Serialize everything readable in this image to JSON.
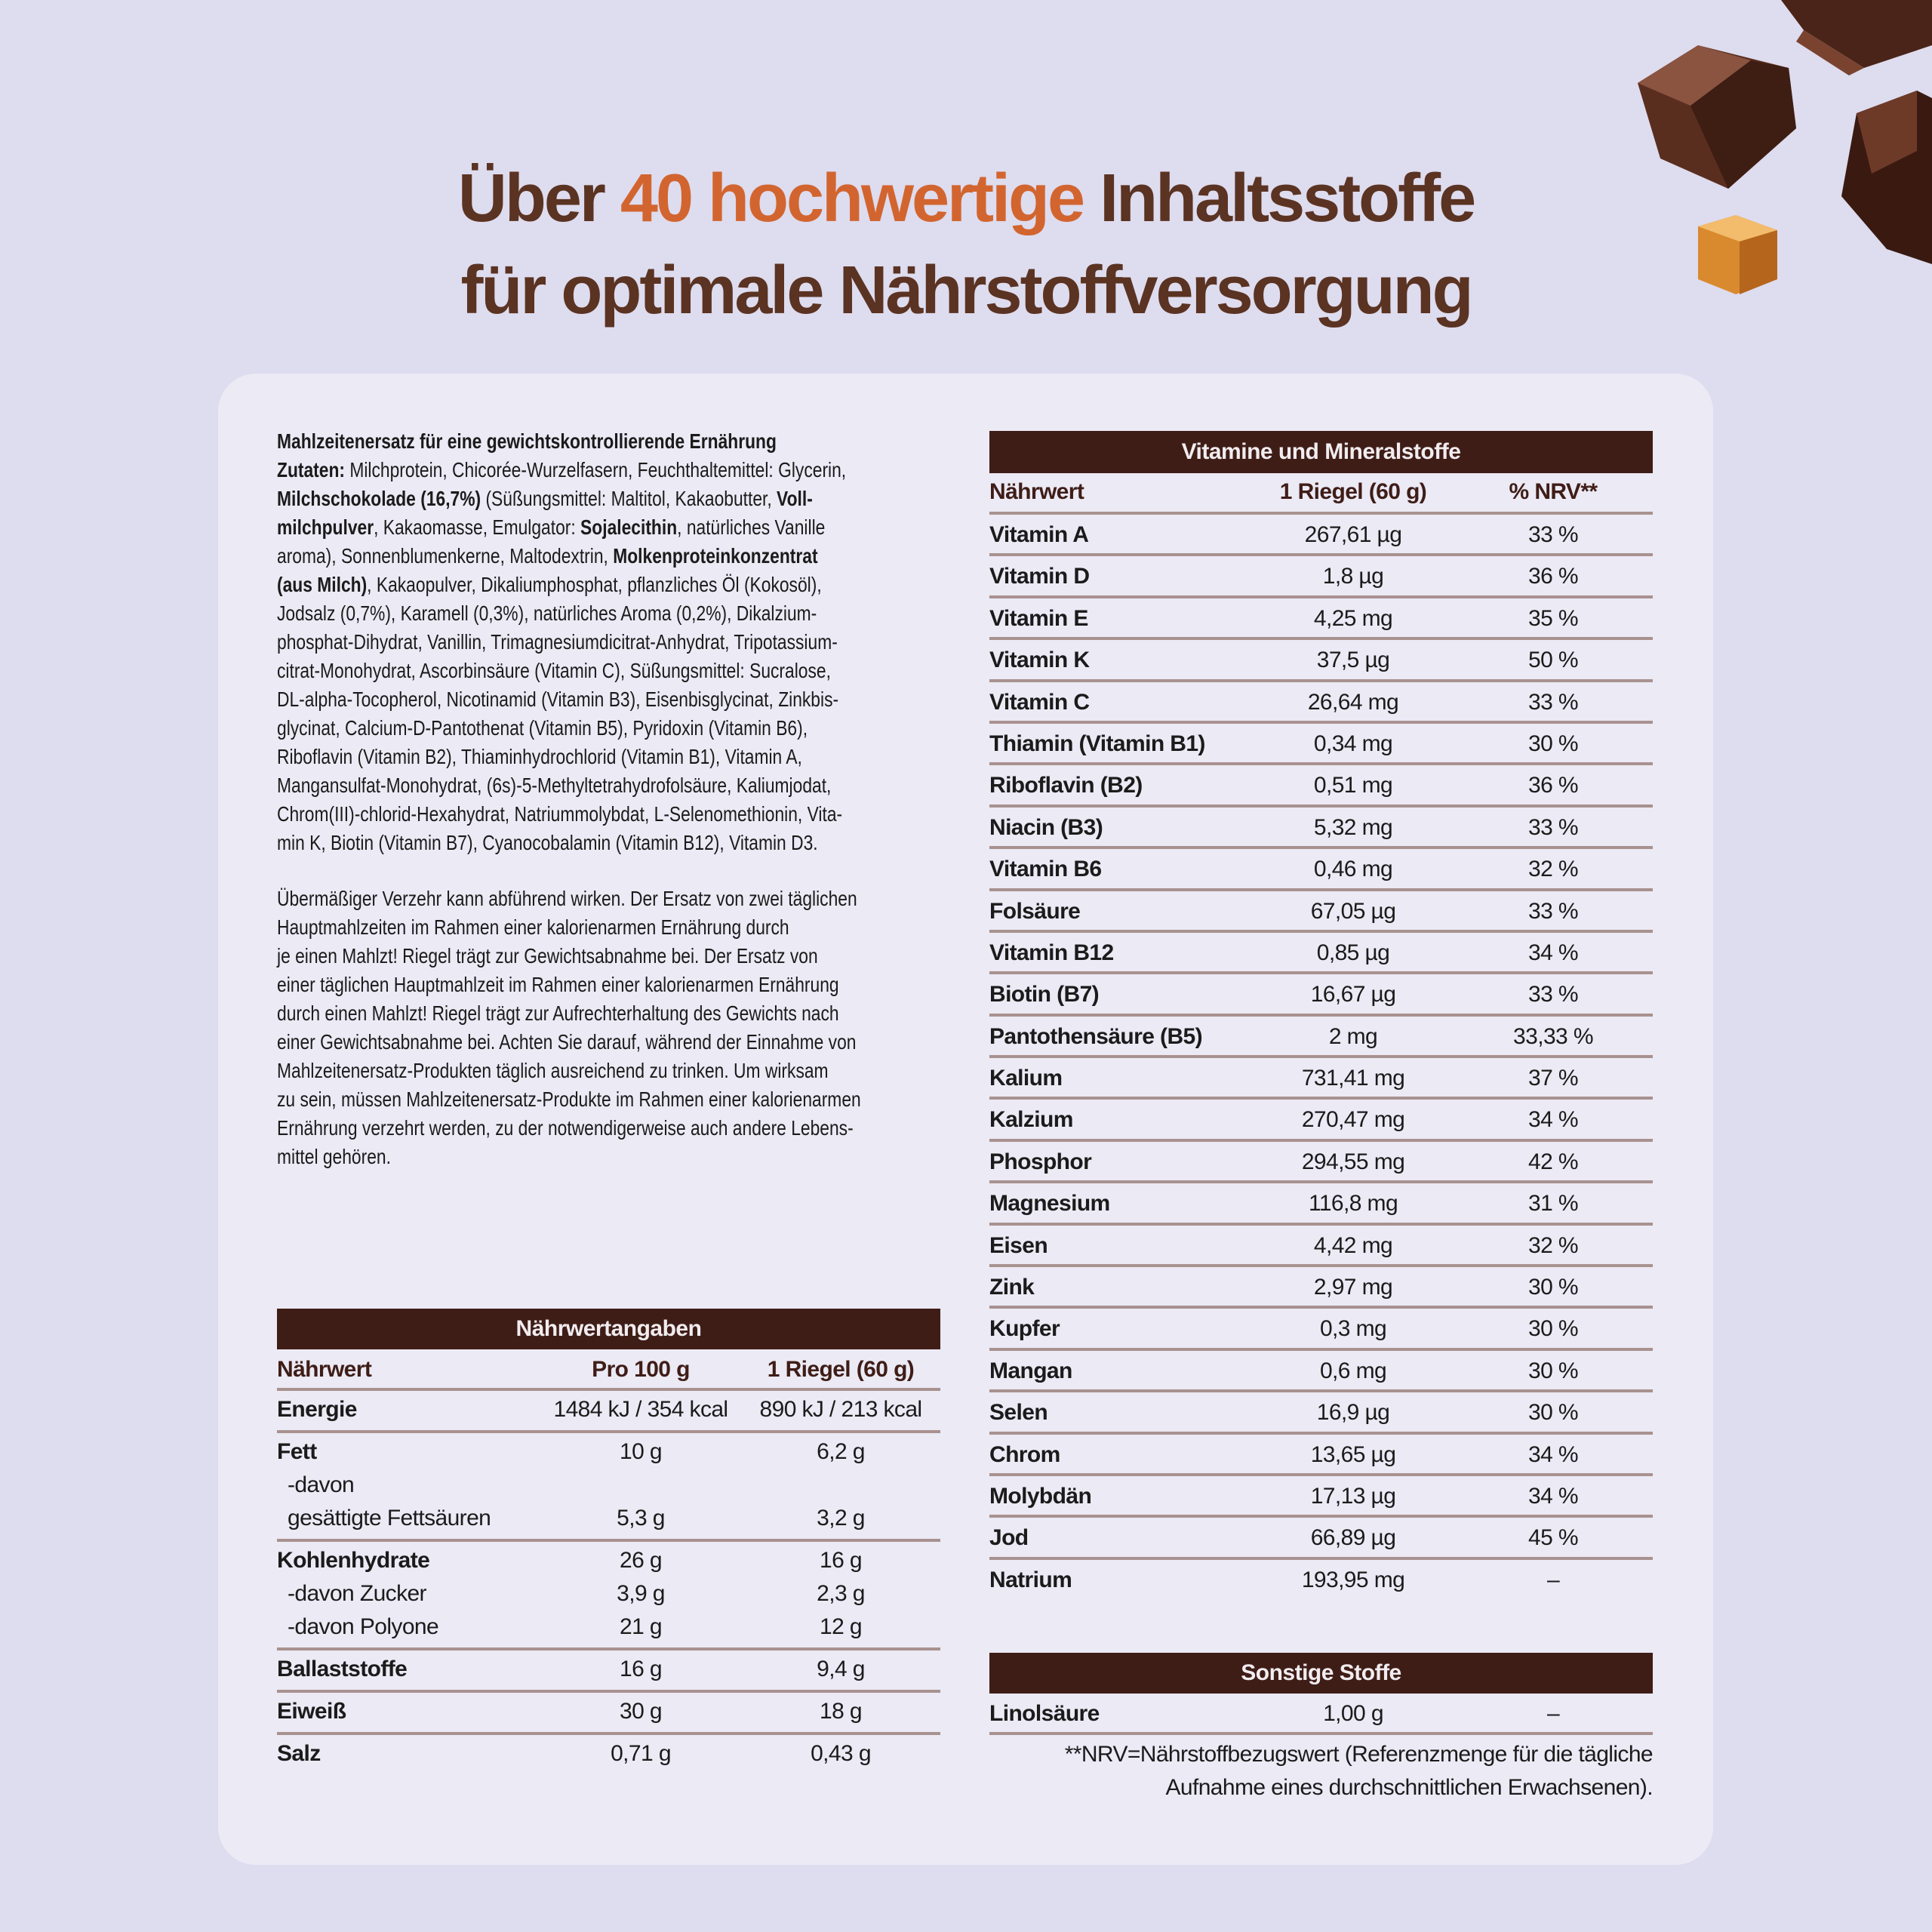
{
  "headline": {
    "line1_pre": "Über ",
    "line1_accent": "40 hochwertige",
    "line1_post": " Inhaltsstoffe",
    "line2": "für optimale Nährstoffversorgung"
  },
  "colors": {
    "title": "#5b3322",
    "accent": "#d2652f",
    "table_header": "#3f1d17",
    "background": "#dedcef",
    "card": "#ebeaf5"
  },
  "decorations": [
    "chocolate-pieces",
    "caramel-cube"
  ],
  "ingredients_lines": [
    [
      {
        "t": "Mahlzeitenersatz für eine gewichtskontrollierende Ernährung",
        "b": true
      }
    ],
    [
      {
        "t": "Zutaten:",
        "b": true
      },
      {
        "t": " Milchprotein, Chicorée-Wurzelfasern, Feuchthaltemittel: Glycerin,"
      }
    ],
    [
      {
        "t": "Milchschokolade (16,7%)",
        "b": true
      },
      {
        "t": " (Süßungsmittel: Maltitol, Kakaobutter, "
      },
      {
        "t": "Voll-",
        "b": true
      }
    ],
    [
      {
        "t": "milchpulver",
        "b": true
      },
      {
        "t": ", Kakaomasse, Emulgator: "
      },
      {
        "t": "Sojalecithin",
        "b": true
      },
      {
        "t": ", natürliches Vanille"
      }
    ],
    [
      {
        "t": "aroma), Sonnenblumenkerne, Maltodextrin, "
      },
      {
        "t": "Molkenproteinkonzentrat",
        "b": true
      }
    ],
    [
      {
        "t": "(aus Milch)",
        "b": true
      },
      {
        "t": ", Kakaopulver, Dikaliumphosphat, pflanzliches Öl (Kokosöl),"
      }
    ],
    [
      {
        "t": "Jodsalz (0,7%), Karamell (0,3%), natürliches Aroma (0,2%), Dikalzium-"
      }
    ],
    [
      {
        "t": "phosphat-Dihydrat, Vanillin, Trimagnesiumdicitrat-Anhydrat, Tripotassium-"
      }
    ],
    [
      {
        "t": "citrat-Monohydrat, Ascorbinsäure (Vitamin C), Süßungsmittel: Sucralose,"
      }
    ],
    [
      {
        "t": "DL-alpha-Tocopherol, Nicotinamid (Vitamin B3), Eisenbisglycinat, Zinkbis-"
      }
    ],
    [
      {
        "t": "glycinat, Calcium-D-Pantothenat (Vitamin B5), Pyridoxin (Vitamin B6),"
      }
    ],
    [
      {
        "t": "Riboflavin (Vitamin B2), Thiaminhydrochlorid (Vitamin B1), Vitamin A,"
      }
    ],
    [
      {
        "t": "Mangansulfat-Monohydrat, (6s)-5-Methyltetrahydrofolsäure, Kaliumjodat,"
      }
    ],
    [
      {
        "t": "Chrom(III)-chlorid-Hexahydrat, Natriummolybdat, L-Selenomethionin, Vita-"
      }
    ],
    [
      {
        "t": "min K, Biotin (Vitamin B7), Cyanocobalamin (Vitamin B12), Vitamin D3."
      }
    ]
  ],
  "warning_lines": [
    "Übermäßiger Verzehr kann abführend wirken. Der Ersatz von zwei täglichen",
    "Hauptmahlzeiten im Rahmen einer kalorienarmen Ernährung durch",
    "je einen Mahlzt! Riegel trägt zur Gewichtsabnahme bei. Der Ersatz von",
    "einer täglichen Hauptmahlzeit im Rahmen einer kalorienarmen Ernährung",
    "durch einen Mahlzt! Riegel trägt zur Aufrechterhaltung des Gewichts nach",
    "einer Gewichtsabnahme bei. Achten Sie darauf, während der Einnahme von",
    "Mahlzeitenersatz-Produkten täglich ausreichend zu trinken. Um wirksam",
    "zu sein, müssen Mahlzeitenersatz-Produkte im Rahmen einer kalorienarmen",
    "Ernährung verzehrt werden, zu der notwendigerweise auch andere Lebens-",
    "mittel gehören."
  ],
  "nutrition": {
    "title": "Nährwertangaben",
    "headers": [
      "Nährwert",
      "Pro 100 g",
      "1 Riegel (60 g)"
    ],
    "groups": [
      [
        [
          "Energie",
          "1484 kJ / 354 kcal",
          "890 kJ / 213 kcal"
        ]
      ],
      [
        [
          "Fett",
          "10 g",
          "6,2 g"
        ],
        [
          "-davon",
          "",
          ""
        ],
        [
          "gesättigte Fettsäuren",
          "5,3 g",
          "3,2 g"
        ]
      ],
      [
        [
          "Kohlenhydrate",
          "26 g",
          "16 g"
        ],
        [
          "-davon Zucker",
          "3,9 g",
          "2,3 g"
        ],
        [
          "-davon Polyone",
          "21 g",
          "12 g"
        ]
      ],
      [
        [
          "Ballaststoffe",
          "16 g",
          "9,4 g"
        ]
      ],
      [
        [
          "Eiweiß",
          "30 g",
          "18 g"
        ]
      ],
      [
        [
          "Salz",
          "0,71 g",
          "0,43 g"
        ]
      ]
    ]
  },
  "vitamins": {
    "title": "Vitamine und Mineralstoffe",
    "headers": [
      "Nährwert",
      "1 Riegel (60 g)",
      "% NRV**"
    ],
    "rows": [
      [
        "Vitamin A",
        "267,61 µg",
        "33 %"
      ],
      [
        "Vitamin D",
        "1,8 µg",
        "36 %"
      ],
      [
        "Vitamin E",
        "4,25 mg",
        "35 %"
      ],
      [
        "Vitamin K",
        "37,5 µg",
        "50 %"
      ],
      [
        "Vitamin C",
        "26,64 mg",
        "33 %"
      ],
      [
        "Thiamin (Vitamin B1)",
        "0,34 mg",
        "30 %"
      ],
      [
        "Riboflavin (B2)",
        "0,51 mg",
        "36 %"
      ],
      [
        "Niacin (B3)",
        "5,32 mg",
        "33 %"
      ],
      [
        "Vitamin B6",
        "0,46 mg",
        "32 %"
      ],
      [
        "Folsäure",
        "67,05 µg",
        "33 %"
      ],
      [
        "Vitamin B12",
        "0,85 µg",
        "34 %"
      ],
      [
        "Biotin (B7)",
        "16,67 µg",
        "33 %"
      ],
      [
        "Pantothensäure (B5)",
        "2 mg",
        "33,33 %"
      ],
      [
        "Kalium",
        "731,41 mg",
        "37 %"
      ],
      [
        "Kalzium",
        "270,47 mg",
        "34 %"
      ],
      [
        "Phosphor",
        "294,55 mg",
        "42 %"
      ],
      [
        "Magnesium",
        "116,8 mg",
        "31 %"
      ],
      [
        "Eisen",
        "4,42 mg",
        "32 %"
      ],
      [
        "Zink",
        "2,97 mg",
        "30 %"
      ],
      [
        "Kupfer",
        "0,3 mg",
        "30 %"
      ],
      [
        "Mangan",
        "0,6 mg",
        "30 %"
      ],
      [
        "Selen",
        "16,9 µg",
        "30 %"
      ],
      [
        "Chrom",
        "13,65 µg",
        "34 %"
      ],
      [
        "Molybdän",
        "17,13 µg",
        "34 %"
      ],
      [
        "Jod",
        "66,89 µg",
        "45 %"
      ],
      [
        "Natrium",
        "193,95 mg",
        "–"
      ]
    ]
  },
  "other": {
    "title": "Sonstige Stoffe",
    "rows": [
      [
        "Linolsäure",
        "1,00 g",
        "–"
      ]
    ]
  },
  "footnote": [
    "**NRV=Nährstoffbezugswert (Referenzmenge für die tägliche",
    "Aufnahme eines durchschnittlichen Erwachsenen)."
  ]
}
